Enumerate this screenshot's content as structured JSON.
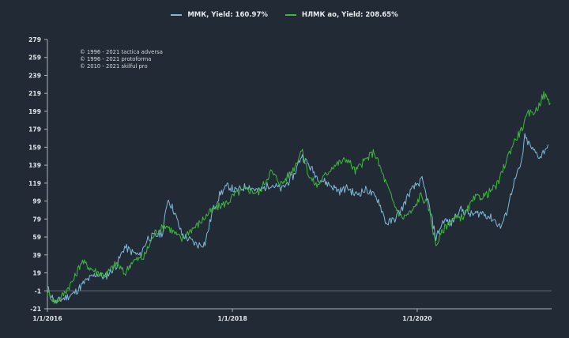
{
  "legend": [
    {
      "label": "ММК, Yield: 160.97%",
      "color": "#7fb8d8"
    },
    {
      "label": "НЛМК ао, Yield: 208.65%",
      "color": "#3eb83c"
    }
  ],
  "copyright": [
    "© 1996 - 2021 tactica adversa",
    "© 1996 - 2021 protoforma",
    "© 2010 - 2021 skilful pro"
  ],
  "chart_data": {
    "type": "line",
    "ylim": [
      -21,
      279
    ],
    "y_ticks": [
      "279",
      "259",
      "239",
      "219",
      "199",
      "179",
      "159",
      "139",
      "119",
      "99",
      "79",
      "59",
      "39",
      "19",
      "-1",
      "-21"
    ],
    "xlim": [
      "2016-01-01",
      "2021-06-15"
    ],
    "x_ticks": [
      {
        "date": "2016-01-01",
        "label": "1/1/2016"
      },
      {
        "date": "2018-01-01",
        "label": "1/1/2018"
      },
      {
        "date": "2020-01-01",
        "label": "1/1/2020"
      }
    ],
    "grid": false,
    "legend_position": "top-center",
    "series": [
      {
        "name": "ММК, Yield: 160.97%",
        "color": "#7fb8d8",
        "points": [
          [
            "2016-01-01",
            2
          ],
          [
            "2016-02-01",
            -14
          ],
          [
            "2016-03-01",
            -10
          ],
          [
            "2016-04-15",
            -4
          ],
          [
            "2016-06-01",
            10
          ],
          [
            "2016-07-15",
            18
          ],
          [
            "2016-08-15",
            14
          ],
          [
            "2016-10-01",
            28
          ],
          [
            "2016-11-01",
            48
          ],
          [
            "2016-12-01",
            42
          ],
          [
            "2017-01-01",
            38
          ],
          [
            "2017-02-01",
            58
          ],
          [
            "2017-03-01",
            60
          ],
          [
            "2017-04-01",
            64
          ],
          [
            "2017-04-20",
            102
          ],
          [
            "2017-05-15",
            88
          ],
          [
            "2017-06-15",
            62
          ],
          [
            "2017-07-15",
            56
          ],
          [
            "2017-08-15",
            50
          ],
          [
            "2017-09-15",
            52
          ],
          [
            "2017-10-15",
            88
          ],
          [
            "2017-11-15",
            108
          ],
          [
            "2017-12-15",
            116
          ],
          [
            "2018-01-15",
            110
          ],
          [
            "2018-03-01",
            116
          ],
          [
            "2018-04-15",
            110
          ],
          [
            "2018-06-01",
            118
          ],
          [
            "2018-07-15",
            112
          ],
          [
            "2018-09-01",
            128
          ],
          [
            "2018-10-01",
            150
          ],
          [
            "2018-11-01",
            138
          ],
          [
            "2018-12-01",
            126
          ],
          [
            "2019-01-15",
            118
          ],
          [
            "2019-03-01",
            110
          ],
          [
            "2019-04-01",
            114
          ],
          [
            "2019-05-01",
            106
          ],
          [
            "2019-06-15",
            112
          ],
          [
            "2019-08-01",
            100
          ],
          [
            "2019-09-01",
            74
          ],
          [
            "2019-10-01",
            78
          ],
          [
            "2019-11-01",
            90
          ],
          [
            "2019-12-01",
            108
          ],
          [
            "2020-01-01",
            118
          ],
          [
            "2020-01-20",
            122
          ],
          [
            "2020-02-15",
            96
          ],
          [
            "2020-03-15",
            58
          ],
          [
            "2020-04-15",
            78
          ],
          [
            "2020-05-15",
            74
          ],
          [
            "2020-06-15",
            90
          ],
          [
            "2020-08-01",
            84
          ],
          [
            "2020-09-15",
            86
          ],
          [
            "2020-11-01",
            78
          ],
          [
            "2020-11-25",
            70
          ],
          [
            "2020-12-15",
            82
          ],
          [
            "2021-01-15",
            118
          ],
          [
            "2021-02-15",
            140
          ],
          [
            "2021-03-01",
            170
          ],
          [
            "2021-04-01",
            156
          ],
          [
            "2021-05-01",
            148
          ],
          [
            "2021-06-01",
            162
          ]
        ]
      },
      {
        "name": "НЛМК ао, Yield: 208.65%",
        "color": "#3eb83c",
        "points": [
          [
            "2016-01-01",
            -2
          ],
          [
            "2016-02-01",
            -14
          ],
          [
            "2016-03-01",
            -6
          ],
          [
            "2016-04-15",
            12
          ],
          [
            "2016-05-15",
            32
          ],
          [
            "2016-07-01",
            22
          ],
          [
            "2016-08-15",
            16
          ],
          [
            "2016-10-01",
            30
          ],
          [
            "2016-11-01",
            18
          ],
          [
            "2016-12-01",
            32
          ],
          [
            "2017-01-15",
            36
          ],
          [
            "2017-03-01",
            64
          ],
          [
            "2017-04-15",
            72
          ],
          [
            "2017-05-15",
            64
          ],
          [
            "2017-06-15",
            56
          ],
          [
            "2017-07-15",
            66
          ],
          [
            "2017-08-15",
            72
          ],
          [
            "2017-10-01",
            86
          ],
          [
            "2017-11-01",
            92
          ],
          [
            "2017-12-15",
            98
          ],
          [
            "2018-01-15",
            108
          ],
          [
            "2018-03-01",
            112
          ],
          [
            "2018-04-15",
            108
          ],
          [
            "2018-06-01",
            132
          ],
          [
            "2018-07-15",
            118
          ],
          [
            "2018-09-01",
            136
          ],
          [
            "2018-10-01",
            156
          ],
          [
            "2018-11-01",
            126
          ],
          [
            "2018-12-01",
            116
          ],
          [
            "2019-02-01",
            138
          ],
          [
            "2019-04-01",
            146
          ],
          [
            "2019-05-01",
            132
          ],
          [
            "2019-06-01",
            142
          ],
          [
            "2019-07-15",
            154
          ],
          [
            "2019-09-01",
            118
          ],
          [
            "2019-10-01",
            96
          ],
          [
            "2019-11-01",
            80
          ],
          [
            "2019-12-15",
            88
          ],
          [
            "2020-01-15",
            106
          ],
          [
            "2020-02-15",
            92
          ],
          [
            "2020-03-15",
            50
          ],
          [
            "2020-04-15",
            68
          ],
          [
            "2020-05-15",
            78
          ],
          [
            "2020-07-01",
            82
          ],
          [
            "2020-08-15",
            102
          ],
          [
            "2020-10-01",
            106
          ],
          [
            "2020-11-15",
            118
          ],
          [
            "2020-12-15",
            142
          ],
          [
            "2021-01-15",
            164
          ],
          [
            "2021-02-15",
            178
          ],
          [
            "2021-03-15",
            196
          ],
          [
            "2021-04-15",
            200
          ],
          [
            "2021-05-15",
            218
          ],
          [
            "2021-06-10",
            208
          ]
        ]
      }
    ]
  }
}
